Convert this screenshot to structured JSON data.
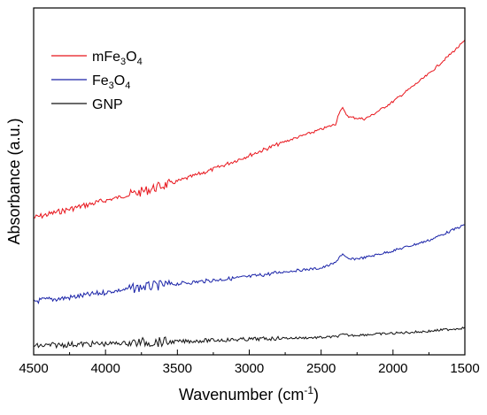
{
  "chart_data": {
    "type": "line",
    "xlabel": "Wavenumber (cm",
    "xlabel_sup": "-1",
    "xlabel_close": ")",
    "ylabel": "Absorbance (a.u.)",
    "x_ticks": [
      "4500",
      "4000",
      "3500",
      "3000",
      "2500",
      "2000",
      "1500"
    ],
    "xlim": [
      4500,
      1500
    ],
    "x_reversed": true,
    "ylim": [
      0,
      1
    ],
    "y_ticks_shown": false,
    "grid": false,
    "legend_position": "top-left",
    "series": [
      {
        "name": "mFe3O4",
        "legend": {
          "base": "mFe",
          "sub1": "3",
          "mid": "O",
          "sub2": "4"
        },
        "color": "#e8141b",
        "x": [
          4500,
          4250,
          4000,
          3750,
          3500,
          3250,
          3000,
          2750,
          2500,
          2400,
          2370,
          2350,
          2330,
          2300,
          2200,
          2150,
          2000,
          1750,
          1500
        ],
        "y": [
          0.395,
          0.42,
          0.445,
          0.47,
          0.5,
          0.535,
          0.575,
          0.615,
          0.65,
          0.665,
          0.705,
          0.71,
          0.695,
          0.685,
          0.68,
          0.69,
          0.73,
          0.81,
          0.905
        ]
      },
      {
        "name": "Fe3O4",
        "legend": {
          "base": "Fe",
          "sub1": "3",
          "mid": "O",
          "sub2": "4"
        },
        "color": "#1a23a8",
        "x": [
          4500,
          4250,
          4000,
          3750,
          3500,
          3250,
          3000,
          2750,
          2500,
          2400,
          2370,
          2350,
          2330,
          2300,
          2200,
          2000,
          1750,
          1500
        ],
        "y": [
          0.155,
          0.165,
          0.18,
          0.195,
          0.205,
          0.215,
          0.225,
          0.24,
          0.25,
          0.265,
          0.285,
          0.29,
          0.28,
          0.275,
          0.28,
          0.3,
          0.33,
          0.375
        ]
      },
      {
        "name": "GNP",
        "legend": {
          "base": "GNP"
        },
        "color": "#111111",
        "x": [
          4500,
          4250,
          4000,
          3750,
          3500,
          3250,
          3000,
          2750,
          2500,
          2400,
          2350,
          2300,
          2000,
          1750,
          1500
        ],
        "y": [
          0.025,
          0.03,
          0.032,
          0.036,
          0.038,
          0.042,
          0.045,
          0.048,
          0.05,
          0.052,
          0.058,
          0.056,
          0.062,
          0.068,
          0.078
        ]
      }
    ]
  }
}
